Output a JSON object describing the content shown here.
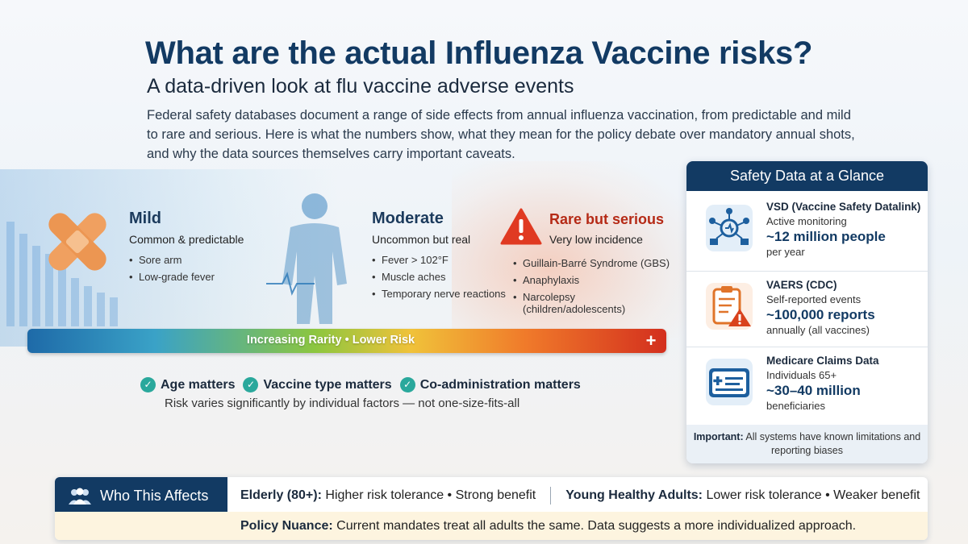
{
  "header": {
    "title": "What are the actual Influenza Vaccine risks?",
    "subtitle": "A data-driven look at flu vaccine adverse events",
    "intro": "Federal safety databases document a range of side effects from annual influenza vaccination, from predictable and mild to rare and serious. Here is what the numbers show, what they mean for the policy debate over mandatory annual shots, and why the data sources themselves carry important caveats."
  },
  "severity": {
    "mild": {
      "title": "Mild",
      "subtitle": "Common & predictable",
      "items": [
        "Sore arm",
        "Low-grade fever"
      ]
    },
    "moderate": {
      "title": "Moderate",
      "subtitle": "Uncommon but real",
      "items": [
        "Fever > 102°F",
        "Muscle aches",
        "Temporary nerve reactions"
      ]
    },
    "rare": {
      "title": "Rare but serious",
      "subtitle": "Very low incidence",
      "items": [
        "Guillain-Barré Syndrome (GBS)",
        "Anaphylaxis",
        "Narcolepsy (children/adolescents)"
      ]
    },
    "scale_label": "Increasing Rarity • Lower Risk",
    "scale_symbol": "+"
  },
  "factors": {
    "items": [
      "Age matters",
      "Vaccine type matters",
      "Co-administration matters"
    ],
    "note": "Risk varies significantly by individual factors — not one-size-fits-all"
  },
  "safety": {
    "title": "Safety Data at a Glance",
    "rows": [
      {
        "icon": "network-monitoring-icon",
        "name": "VSD (Vaccine Safety Datalink)",
        "desc": "Active monitoring",
        "stat": "~12 million people",
        "unit": "per year"
      },
      {
        "icon": "clipboard-warning-icon",
        "name": "VAERS (CDC)",
        "desc": "Self-reported events",
        "stat": "~100,000 reports",
        "unit": "annually (all vaccines)"
      },
      {
        "icon": "medical-card-icon",
        "name": "Medicare Claims Data",
        "desc": "Individuals 65+",
        "stat": "~30–40 million",
        "unit": "beneficiaries"
      }
    ],
    "note_label": "Important:",
    "note_text": " All systems have known limitations and reporting biases"
  },
  "who": {
    "label": "Who This Affects",
    "elderly_label": "Elderly (80+):",
    "elderly_text": " Higher risk tolerance • Strong benefit",
    "young_label": "Young Healthy Adults:",
    "young_text": " Lower risk tolerance • Weaker benefit",
    "policy_label": "Policy Nuance:",
    "policy_text": " Current mandates treat all adults the same. Data suggests a more individualized approach."
  },
  "colors": {
    "navy": "#123a63",
    "teal": "#2aa89c",
    "danger": "#d32f1e",
    "bandage": "#f0a060"
  }
}
